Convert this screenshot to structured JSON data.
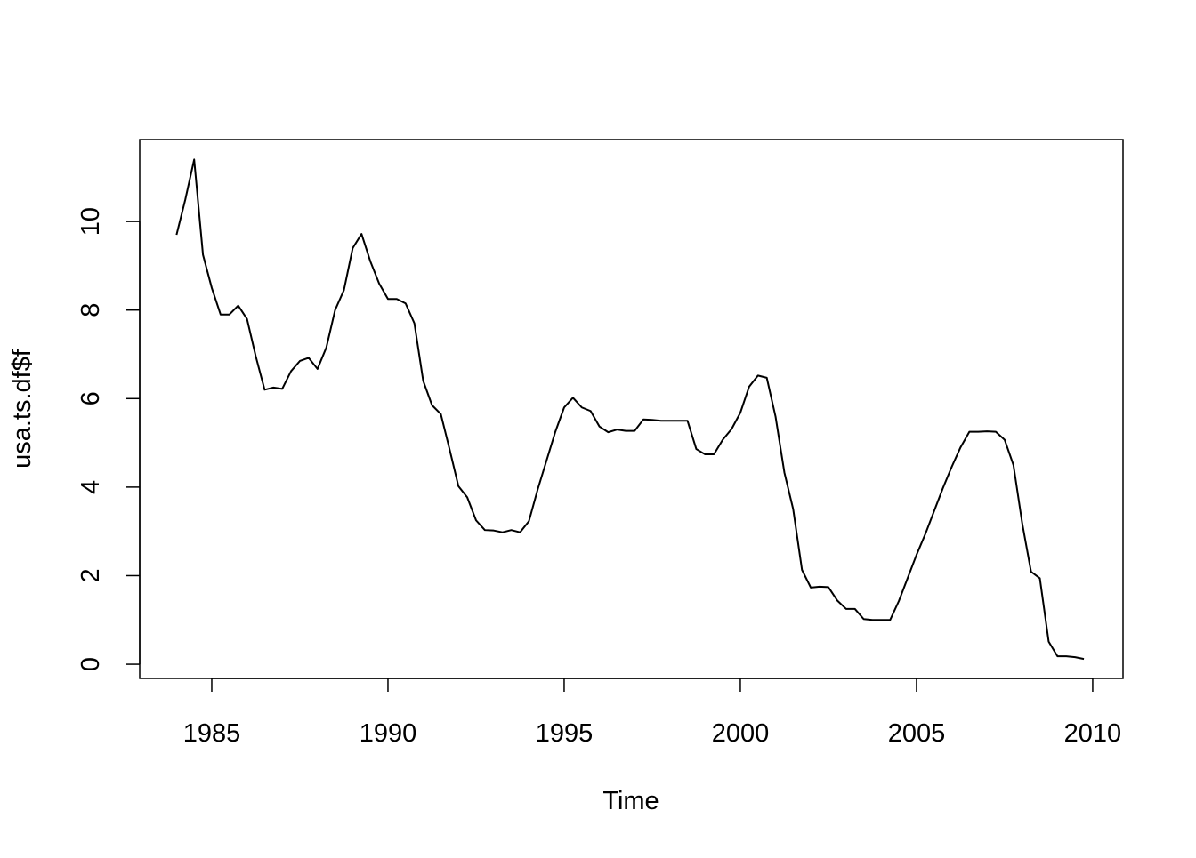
{
  "chart_data": {
    "type": "line",
    "xlabel": "Time",
    "ylabel": "usa.ts.df$f",
    "color": "#000000",
    "x": [
      1984,
      1984.25,
      1984.5,
      1984.75,
      1985,
      1985.25,
      1985.5,
      1985.75,
      1986,
      1986.25,
      1986.5,
      1986.75,
      1987,
      1987.25,
      1987.5,
      1987.75,
      1988,
      1988.25,
      1988.5,
      1988.75,
      1989,
      1989.25,
      1989.5,
      1989.75,
      1990,
      1990.25,
      1990.5,
      1990.75,
      1991,
      1991.25,
      1991.5,
      1991.75,
      1992,
      1992.25,
      1992.5,
      1992.75,
      1993,
      1993.25,
      1993.5,
      1993.75,
      1994,
      1994.25,
      1994.5,
      1994.75,
      1995,
      1995.25,
      1995.5,
      1995.75,
      1996,
      1996.25,
      1996.5,
      1996.75,
      1997,
      1997.25,
      1997.5,
      1997.75,
      1998,
      1998.25,
      1998.5,
      1998.75,
      1999,
      1999.25,
      1999.5,
      1999.75,
      2000,
      2000.25,
      2000.5,
      2000.75,
      2001,
      2001.25,
      2001.5,
      2001.75,
      2002,
      2002.25,
      2002.5,
      2002.75,
      2003,
      2003.25,
      2003.5,
      2003.75,
      2004,
      2004.25,
      2004.5,
      2004.75,
      2005,
      2005.25,
      2005.5,
      2005.75,
      2006,
      2006.25,
      2006.5,
      2006.75,
      2007,
      2007.25,
      2007.5,
      2007.75,
      2008,
      2008.25,
      2008.5,
      2008.75,
      2009,
      2009.25,
      2009.5,
      2009.75
    ],
    "values": [
      9.7,
      10.5,
      11.4,
      9.25,
      8.5,
      7.9,
      7.9,
      8.1,
      7.8,
      6.95,
      6.2,
      6.25,
      6.22,
      6.62,
      6.85,
      6.92,
      6.67,
      7.15,
      8.0,
      8.45,
      9.4,
      9.72,
      9.1,
      8.6,
      8.25,
      8.25,
      8.15,
      7.7,
      6.4,
      5.85,
      5.65,
      4.85,
      4.02,
      3.77,
      3.25,
      3.03,
      3.02,
      2.98,
      3.03,
      2.98,
      3.23,
      3.95,
      4.6,
      5.25,
      5.8,
      6.02,
      5.8,
      5.72,
      5.37,
      5.24,
      5.3,
      5.27,
      5.27,
      5.53,
      5.52,
      5.5,
      5.5,
      5.5,
      5.5,
      4.86,
      4.74,
      4.74,
      5.07,
      5.31,
      5.68,
      6.27,
      6.52,
      6.47,
      5.59,
      4.33,
      3.5,
      2.13,
      1.73,
      1.75,
      1.74,
      1.44,
      1.25,
      1.25,
      1.02,
      1.0,
      1.0,
      1.0,
      1.43,
      1.95,
      2.47,
      2.94,
      3.46,
      3.98,
      4.46,
      4.9,
      5.25,
      5.25,
      5.26,
      5.25,
      5.07,
      4.5,
      3.18,
      2.09,
      1.94,
      0.51,
      0.18,
      0.18,
      0.16,
      0.12
    ],
    "xlim": [
      1982.955,
      2010.86
    ],
    "ylim": [
      -0.32,
      11.85
    ],
    "xticks": [
      1985,
      1990,
      1995,
      2000,
      2005,
      2010
    ],
    "yticks": [
      0,
      2,
      4,
      6,
      8,
      10
    ]
  }
}
